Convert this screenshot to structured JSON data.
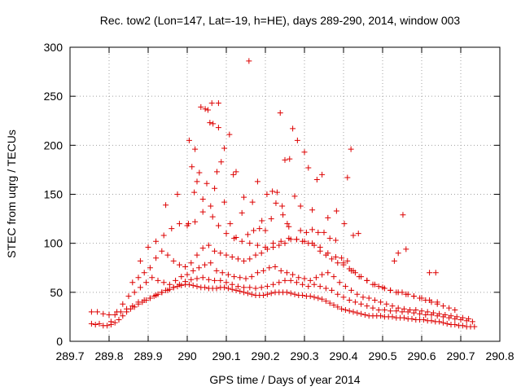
{
  "chart_data": {
    "type": "scatter",
    "title": "Rec. tow2 (Lon=147, Lat=-19, h=HE), days 289-290, 2014, window 003",
    "xlabel": "GPS time / Days of year 2014",
    "ylabel": "STEC from uqrg / TECUs",
    "xlim": [
      289.7,
      290.8
    ],
    "ylim": [
      0,
      300
    ],
    "xticks": [
      "289.7",
      "289.8",
      "289.9",
      "290",
      "290.1",
      "290.2",
      "290.3",
      "290.4",
      "290.5",
      "290.6",
      "290.7",
      "290.8"
    ],
    "yticks": [
      "0",
      "50",
      "100",
      "150",
      "200",
      "250",
      "300"
    ],
    "grid": true,
    "marker": "plus",
    "color": "#dd0000",
    "series": [
      {
        "x": [
          289.755,
          289.765,
          289.775,
          289.785,
          289.795,
          289.805,
          289.815,
          289.825,
          289.835,
          289.845,
          289.855,
          289.865,
          289.875,
          289.885,
          289.895,
          289.905,
          289.915,
          289.925,
          289.935,
          289.945,
          289.955,
          289.965,
          289.975,
          289.985,
          289.995,
          290.005,
          290.015,
          290.025,
          290.035,
          290.045,
          290.055,
          290.065,
          290.075,
          290.085,
          290.095,
          290.105,
          290.115,
          290.125,
          290.135,
          290.145,
          290.155,
          290.165,
          290.175,
          290.185,
          290.195,
          290.205,
          290.215,
          290.225,
          290.235,
          290.245,
          290.255,
          290.265,
          290.275,
          290.285,
          290.295,
          290.305,
          290.315,
          290.325,
          290.335,
          290.345,
          290.355,
          290.365,
          290.375,
          290.385,
          290.395,
          290.405,
          290.415,
          290.425,
          290.435,
          290.445,
          290.455,
          290.465,
          290.475,
          290.485,
          290.495,
          290.505,
          290.515,
          290.525,
          290.535,
          290.545,
          290.555,
          290.565,
          290.575,
          290.585,
          290.595,
          290.605,
          290.615,
          290.625,
          290.635,
          290.645,
          290.655,
          290.665,
          290.675,
          290.685,
          290.695,
          290.705,
          290.715,
          290.725,
          290.735,
          289.755,
          289.77,
          289.785,
          289.8,
          289.815,
          289.83,
          289.845,
          289.86,
          289.875,
          289.89,
          289.905,
          289.92,
          289.935,
          289.95,
          289.965,
          289.98,
          289.995,
          290.01,
          290.025,
          290.04,
          290.055,
          290.07,
          290.085,
          290.1,
          290.115,
          290.13,
          290.145,
          290.16,
          290.175,
          290.19,
          290.205,
          290.22,
          290.235,
          290.25,
          290.265,
          290.28,
          290.295,
          290.31,
          290.325,
          290.34,
          290.355,
          290.37,
          290.385,
          290.4,
          290.415,
          290.43,
          290.445,
          290.46,
          290.475,
          290.49,
          290.505,
          290.52,
          290.535,
          290.55,
          290.565,
          290.58,
          290.595,
          290.61,
          290.625,
          290.64,
          290.655,
          290.67,
          290.685,
          290.7,
          290.715,
          290.73,
          289.805,
          289.82,
          289.835,
          289.85,
          289.865,
          289.88,
          289.895,
          289.91,
          289.925,
          289.94,
          289.955,
          289.97,
          289.985,
          290.0,
          290.015,
          290.03,
          290.045,
          290.06,
          290.075,
          290.09,
          290.105,
          290.12,
          290.135,
          290.15,
          290.165,
          290.18,
          290.195,
          290.21,
          290.225,
          290.24,
          290.255,
          290.27,
          290.285,
          290.3,
          290.315,
          290.33,
          290.345,
          290.36,
          290.375,
          290.39,
          290.405,
          290.42,
          290.435,
          290.45,
          290.465,
          290.48,
          290.495,
          290.51,
          290.525,
          290.54,
          290.555,
          290.57,
          290.585,
          290.6,
          290.615,
          290.63,
          290.645,
          290.66,
          290.675,
          290.69,
          290.705,
          290.72,
          289.86,
          289.875,
          289.89,
          289.905,
          289.92,
          289.935,
          289.95,
          289.965,
          289.98,
          289.995,
          290.01,
          290.025,
          290.04,
          290.055,
          290.07,
          290.085,
          290.1,
          290.115,
          290.13,
          290.145,
          290.16,
          290.175,
          290.19,
          290.205,
          290.22,
          290.235,
          290.25,
          290.265,
          290.28,
          290.295,
          290.31,
          290.325,
          290.34,
          290.355,
          290.37,
          290.385,
          290.4,
          290.415,
          290.43,
          290.445,
          290.46,
          290.475,
          290.49,
          290.505,
          290.52,
          290.535,
          290.55,
          290.565,
          290.58,
          290.595,
          290.61,
          290.625,
          290.64,
          290.655,
          290.67,
          290.685,
          289.88,
          289.9,
          289.92,
          289.94,
          289.96,
          289.98,
          290.0,
          290.02,
          290.04,
          290.06,
          290.08,
          290.1,
          290.12,
          290.14,
          290.16,
          290.18,
          290.2,
          290.22,
          290.24,
          290.26,
          290.28,
          290.3,
          290.32,
          290.34,
          290.36,
          290.38,
          290.4,
          290.42,
          290.44,
          290.46,
          290.48,
          290.5,
          290.52,
          290.54,
          290.56,
          290.58,
          290.6,
          290.62,
          290.64,
          289.945,
          289.975,
          290.003,
          290.012,
          290.018,
          290.025,
          290.031,
          290.04,
          290.046,
          290.053,
          290.058,
          290.063,
          290.066,
          290.07,
          290.076,
          290.08,
          290.087,
          290.095,
          290.108,
          290.118,
          290.125,
          290.145,
          290.158,
          290.167,
          290.18,
          290.191,
          290.204,
          290.218,
          290.227,
          290.238,
          290.243,
          290.25,
          290.256,
          290.262,
          290.27,
          290.282,
          290.29,
          290.3,
          290.31,
          290.32,
          290.332,
          290.345,
          290.36,
          290.382,
          290.402,
          290.41,
          290.419,
          290.425,
          290.438,
          290.53,
          290.54,
          290.552,
          290.56,
          290.62,
          290.636,
          290.005,
          290.02,
          290.035,
          290.05,
          290.065,
          290.08,
          290.095,
          290.11,
          290.125,
          290.14,
          290.155,
          290.17,
          290.185,
          290.2,
          290.215,
          290.23,
          290.245,
          290.26,
          290.275,
          290.29,
          290.305,
          290.32,
          290.335,
          290.35,
          290.365,
          290.38,
          290.395,
          290.41,
          290.425
        ],
        "y": [
          18,
          17,
          18,
          16,
          16,
          17,
          19,
          22,
          26,
          30,
          33,
          35,
          38,
          40,
          42,
          44,
          46,
          48,
          50,
          52,
          53,
          55,
          56,
          57,
          58,
          58,
          57,
          56,
          55,
          55,
          54,
          54,
          54,
          55,
          55,
          54,
          53,
          52,
          51,
          50,
          49,
          48,
          47,
          47,
          47,
          48,
          49,
          50,
          50,
          50,
          50,
          49,
          48,
          47,
          47,
          46,
          46,
          45,
          44,
          43,
          41,
          39,
          37,
          35,
          33,
          32,
          31,
          30,
          29,
          28,
          27,
          26,
          26,
          26,
          26,
          25,
          25,
          25,
          24,
          24,
          24,
          23,
          23,
          22,
          22,
          22,
          21,
          21,
          20,
          20,
          19,
          18,
          17,
          17,
          16,
          16,
          15,
          15,
          15,
          30,
          30,
          28,
          27,
          27,
          30,
          33,
          36,
          40,
          42,
          44,
          47,
          50,
          52,
          55,
          58,
          61,
          63,
          64,
          65,
          63,
          62,
          62,
          60,
          58,
          56,
          55,
          55,
          54,
          55,
          56,
          58,
          60,
          62,
          62,
          60,
          58,
          56,
          58,
          56,
          54,
          52,
          48,
          45,
          42,
          40,
          38,
          36,
          34,
          32,
          32,
          31,
          31,
          30,
          30,
          29,
          28,
          27,
          27,
          26,
          25,
          24,
          23,
          22,
          21,
          20,
          20,
          30,
          38,
          46,
          50,
          55,
          60,
          65,
          62,
          60,
          58,
          62,
          66,
          68,
          72,
          75,
          78,
          80,
          72,
          70,
          68,
          66,
          65,
          64,
          66,
          70,
          72,
          75,
          76,
          72,
          70,
          68,
          65,
          64,
          62,
          65,
          68,
          70,
          66,
          60,
          56,
          52,
          48,
          45,
          44,
          42,
          40,
          38,
          36,
          34,
          33,
          32,
          32,
          31,
          30,
          29,
          28,
          27,
          26,
          25,
          24,
          23,
          60,
          65,
          70,
          75,
          85,
          92,
          88,
          82,
          78,
          76,
          80,
          88,
          95,
          98,
          92,
          90,
          88,
          86,
          84,
          82,
          84,
          88,
          90,
          94,
          96,
          98,
          100,
          104,
          104,
          102,
          100,
          98,
          92,
          88,
          84,
          80,
          78,
          74,
          70,
          66,
          62,
          58,
          56,
          54,
          52,
          50,
          50,
          48,
          46,
          44,
          42,
          40,
          38,
          36,
          34,
          32,
          82,
          96,
          102,
          108,
          115,
          120,
          118,
          122,
          132,
          138,
          118,
          110,
          105,
          102,
          100,
          98,
          96,
          100,
          102,
          105,
          104,
          102,
          100,
          96,
          90,
          86,
          80,
          72,
          66,
          62,
          58,
          55,
          52,
          50,
          48,
          46,
          44,
          42,
          40,
          139,
          150,
          120,
          178,
          152,
          163,
          172,
          145,
          237,
          236,
          223,
          243,
          222,
          156,
          173,
          218,
          183,
          142,
          211,
          170,
          173,
          147,
          286,
          142,
          163,
          123,
          150,
          153,
          141,
          233,
          138,
          185,
          120,
          186,
          217,
          205,
          138,
          193,
          177,
          134,
          165,
          170,
          126,
          133,
          120,
          167,
          196,
          108,
          110,
          82,
          90,
          129,
          94,
          70,
          70,
          205,
          196,
          239,
          161,
          127,
          243,
          197,
          120,
          106,
          131,
          109,
          113,
          115,
          113,
          125,
          152,
          129,
          117,
          148,
          113,
          111,
          114,
          111,
          111,
          105,
          103,
          85,
          82,
          72
        ]
      }
    ]
  }
}
